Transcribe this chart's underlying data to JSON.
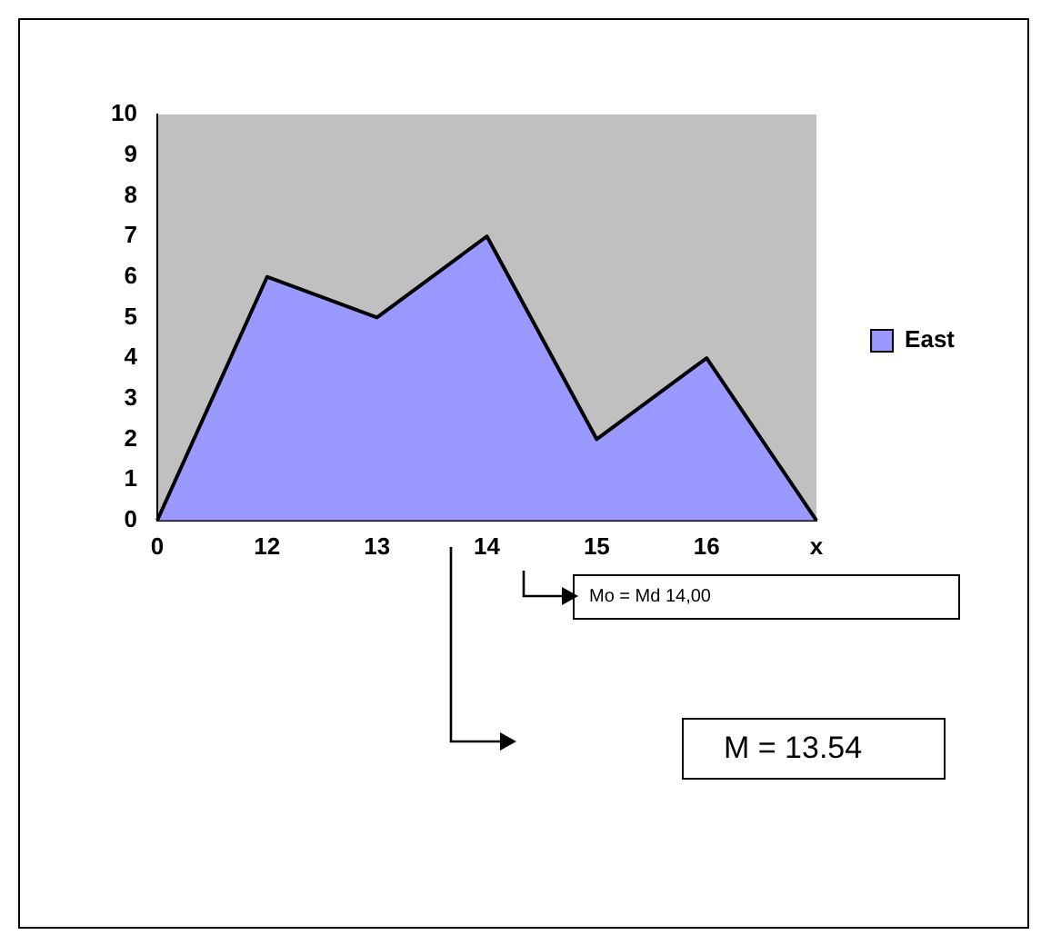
{
  "chart_data": {
    "type": "area",
    "categories": [
      "0",
      "12",
      "13",
      "14",
      "15",
      "16",
      "x"
    ],
    "series": [
      {
        "name": "East",
        "color": "#9999ff",
        "values": [
          0,
          6,
          5,
          7,
          2,
          4,
          0
        ]
      }
    ],
    "ylim": [
      0,
      10
    ],
    "yticks": [
      0,
      1,
      2,
      3,
      4,
      5,
      6,
      7,
      8,
      9,
      10
    ],
    "grid": false,
    "legend": "right",
    "annotations": [
      "Mo = Md 14,00",
      "M = 13.54"
    ]
  }
}
